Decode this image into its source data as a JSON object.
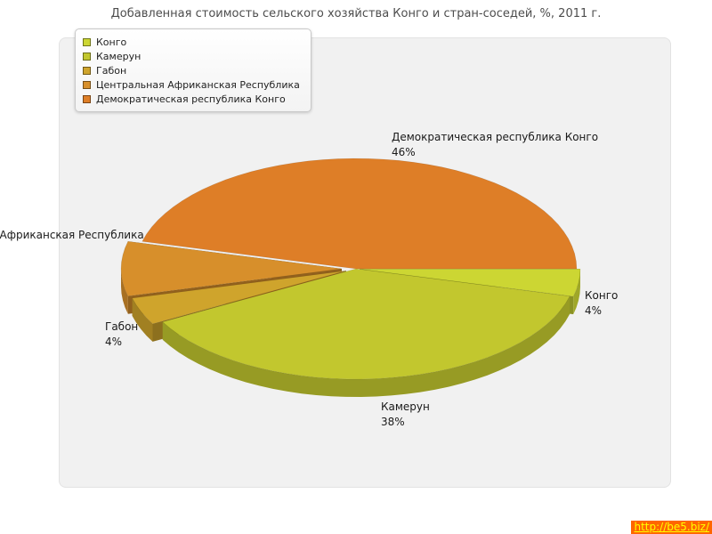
{
  "title": "Добавленная стоимость сельского хозяйства Конго и стран-соседей, %, 2011 г.",
  "watermark": {
    "text": "http://be5.biz/"
  },
  "chart_data": {
    "type": "pie",
    "style": "3d-exploded",
    "title": "Добавленная стоимость сельского хозяйства Конго и стран-соседей, %, 2011 г.",
    "unit": "%",
    "legend_position": "top-left",
    "series": [
      {
        "name": "Конго",
        "value": 4,
        "pct": "4%",
        "color": "#ccd633"
      },
      {
        "name": "Камерун",
        "value": 38,
        "pct": "38%",
        "color": "#c2c72e"
      },
      {
        "name": "Габон",
        "value": 4,
        "pct": "4%",
        "color": "#cfa42c"
      },
      {
        "name": "Центральная Африканская Республика",
        "value": 8,
        "pct": "8%",
        "color": "#d78f2b"
      },
      {
        "name": "Демократическая республика Конго",
        "value": 46,
        "pct": "46%",
        "color": "#de7e27"
      }
    ]
  }
}
